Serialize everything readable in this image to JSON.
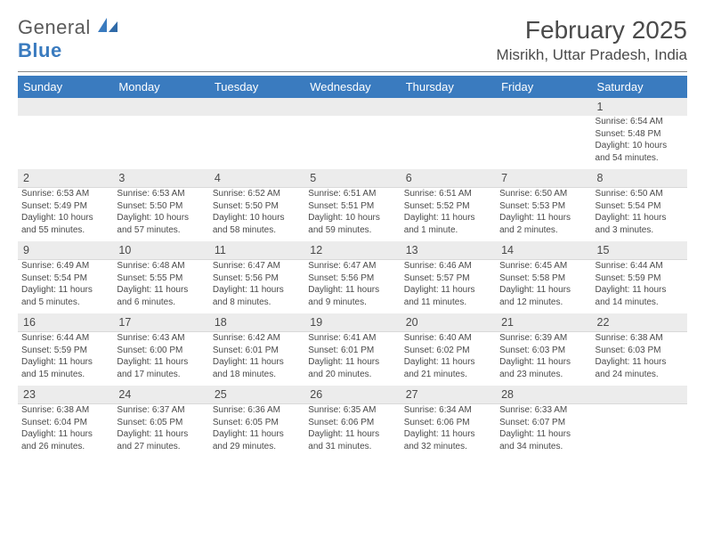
{
  "brand": {
    "word1": "General",
    "word2": "Blue",
    "logo_color": "#3a7bbf"
  },
  "header": {
    "title": "February 2025",
    "location": "Misrikh, Uttar Pradesh, India"
  },
  "colors": {
    "header_bg": "#3a7bbf",
    "header_fg": "#ffffff",
    "daynum_bg": "#ececec",
    "rule": "#888888",
    "text": "#4a4a4a",
    "cell_border": "#d9d9d9"
  },
  "dow": [
    "Sunday",
    "Monday",
    "Tuesday",
    "Wednesday",
    "Thursday",
    "Friday",
    "Saturday"
  ],
  "weeks": [
    [
      null,
      null,
      null,
      null,
      null,
      null,
      {
        "n": "1",
        "sr": "Sunrise: 6:54 AM",
        "ss": "Sunset: 5:48 PM",
        "d1": "Daylight: 10 hours",
        "d2": "and 54 minutes."
      }
    ],
    [
      {
        "n": "2",
        "sr": "Sunrise: 6:53 AM",
        "ss": "Sunset: 5:49 PM",
        "d1": "Daylight: 10 hours",
        "d2": "and 55 minutes."
      },
      {
        "n": "3",
        "sr": "Sunrise: 6:53 AM",
        "ss": "Sunset: 5:50 PM",
        "d1": "Daylight: 10 hours",
        "d2": "and 57 minutes."
      },
      {
        "n": "4",
        "sr": "Sunrise: 6:52 AM",
        "ss": "Sunset: 5:50 PM",
        "d1": "Daylight: 10 hours",
        "d2": "and 58 minutes."
      },
      {
        "n": "5",
        "sr": "Sunrise: 6:51 AM",
        "ss": "Sunset: 5:51 PM",
        "d1": "Daylight: 10 hours",
        "d2": "and 59 minutes."
      },
      {
        "n": "6",
        "sr": "Sunrise: 6:51 AM",
        "ss": "Sunset: 5:52 PM",
        "d1": "Daylight: 11 hours",
        "d2": "and 1 minute."
      },
      {
        "n": "7",
        "sr": "Sunrise: 6:50 AM",
        "ss": "Sunset: 5:53 PM",
        "d1": "Daylight: 11 hours",
        "d2": "and 2 minutes."
      },
      {
        "n": "8",
        "sr": "Sunrise: 6:50 AM",
        "ss": "Sunset: 5:54 PM",
        "d1": "Daylight: 11 hours",
        "d2": "and 3 minutes."
      }
    ],
    [
      {
        "n": "9",
        "sr": "Sunrise: 6:49 AM",
        "ss": "Sunset: 5:54 PM",
        "d1": "Daylight: 11 hours",
        "d2": "and 5 minutes."
      },
      {
        "n": "10",
        "sr": "Sunrise: 6:48 AM",
        "ss": "Sunset: 5:55 PM",
        "d1": "Daylight: 11 hours",
        "d2": "and 6 minutes."
      },
      {
        "n": "11",
        "sr": "Sunrise: 6:47 AM",
        "ss": "Sunset: 5:56 PM",
        "d1": "Daylight: 11 hours",
        "d2": "and 8 minutes."
      },
      {
        "n": "12",
        "sr": "Sunrise: 6:47 AM",
        "ss": "Sunset: 5:56 PM",
        "d1": "Daylight: 11 hours",
        "d2": "and 9 minutes."
      },
      {
        "n": "13",
        "sr": "Sunrise: 6:46 AM",
        "ss": "Sunset: 5:57 PM",
        "d1": "Daylight: 11 hours",
        "d2": "and 11 minutes."
      },
      {
        "n": "14",
        "sr": "Sunrise: 6:45 AM",
        "ss": "Sunset: 5:58 PM",
        "d1": "Daylight: 11 hours",
        "d2": "and 12 minutes."
      },
      {
        "n": "15",
        "sr": "Sunrise: 6:44 AM",
        "ss": "Sunset: 5:59 PM",
        "d1": "Daylight: 11 hours",
        "d2": "and 14 minutes."
      }
    ],
    [
      {
        "n": "16",
        "sr": "Sunrise: 6:44 AM",
        "ss": "Sunset: 5:59 PM",
        "d1": "Daylight: 11 hours",
        "d2": "and 15 minutes."
      },
      {
        "n": "17",
        "sr": "Sunrise: 6:43 AM",
        "ss": "Sunset: 6:00 PM",
        "d1": "Daylight: 11 hours",
        "d2": "and 17 minutes."
      },
      {
        "n": "18",
        "sr": "Sunrise: 6:42 AM",
        "ss": "Sunset: 6:01 PM",
        "d1": "Daylight: 11 hours",
        "d2": "and 18 minutes."
      },
      {
        "n": "19",
        "sr": "Sunrise: 6:41 AM",
        "ss": "Sunset: 6:01 PM",
        "d1": "Daylight: 11 hours",
        "d2": "and 20 minutes."
      },
      {
        "n": "20",
        "sr": "Sunrise: 6:40 AM",
        "ss": "Sunset: 6:02 PM",
        "d1": "Daylight: 11 hours",
        "d2": "and 21 minutes."
      },
      {
        "n": "21",
        "sr": "Sunrise: 6:39 AM",
        "ss": "Sunset: 6:03 PM",
        "d1": "Daylight: 11 hours",
        "d2": "and 23 minutes."
      },
      {
        "n": "22",
        "sr": "Sunrise: 6:38 AM",
        "ss": "Sunset: 6:03 PM",
        "d1": "Daylight: 11 hours",
        "d2": "and 24 minutes."
      }
    ],
    [
      {
        "n": "23",
        "sr": "Sunrise: 6:38 AM",
        "ss": "Sunset: 6:04 PM",
        "d1": "Daylight: 11 hours",
        "d2": "and 26 minutes."
      },
      {
        "n": "24",
        "sr": "Sunrise: 6:37 AM",
        "ss": "Sunset: 6:05 PM",
        "d1": "Daylight: 11 hours",
        "d2": "and 27 minutes."
      },
      {
        "n": "25",
        "sr": "Sunrise: 6:36 AM",
        "ss": "Sunset: 6:05 PM",
        "d1": "Daylight: 11 hours",
        "d2": "and 29 minutes."
      },
      {
        "n": "26",
        "sr": "Sunrise: 6:35 AM",
        "ss": "Sunset: 6:06 PM",
        "d1": "Daylight: 11 hours",
        "d2": "and 31 minutes."
      },
      {
        "n": "27",
        "sr": "Sunrise: 6:34 AM",
        "ss": "Sunset: 6:06 PM",
        "d1": "Daylight: 11 hours",
        "d2": "and 32 minutes."
      },
      {
        "n": "28",
        "sr": "Sunrise: 6:33 AM",
        "ss": "Sunset: 6:07 PM",
        "d1": "Daylight: 11 hours",
        "d2": "and 34 minutes."
      },
      null
    ]
  ]
}
